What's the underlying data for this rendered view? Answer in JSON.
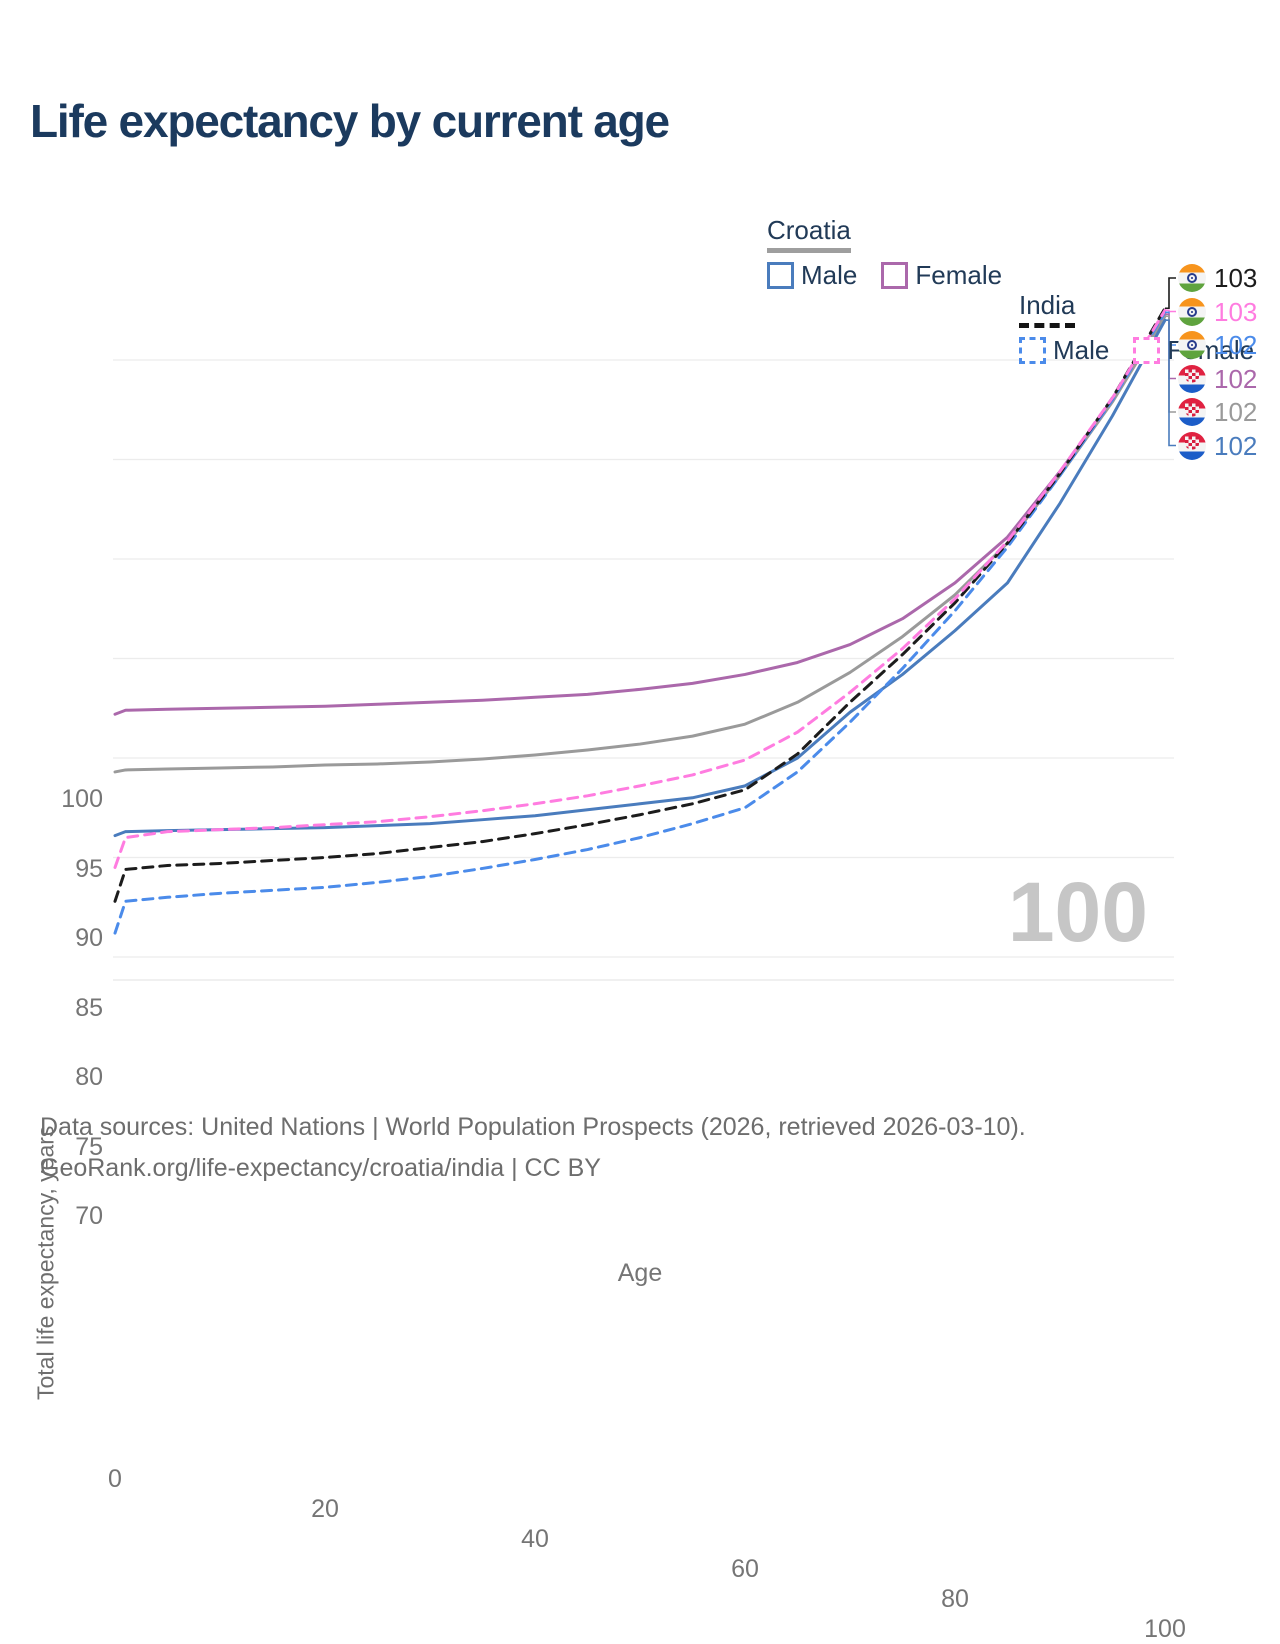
{
  "title": "Life expectancy by current age",
  "watermark": "100",
  "legend": {
    "groups": [
      {
        "label": "Croatia",
        "rule_color": "#9e9e9e",
        "rule_style": "solid",
        "items": [
          {
            "label": "Male",
            "series": "croatia_male"
          },
          {
            "label": "Female",
            "series": "croatia_female"
          }
        ]
      },
      {
        "label": "India",
        "rule_color": "#141414",
        "rule_style": "dashed",
        "items": [
          {
            "label": "Male",
            "series": "india_male"
          },
          {
            "label": "Female",
            "series": "india_female"
          }
        ]
      }
    ]
  },
  "footer": {
    "line1": "Data sources: United Nations | World Population Prospects (2026, retrieved 2026-03-10).",
    "line2": "GeoRank.org/life-expectancy/croatia/india | CC BY"
  },
  "chart_data": {
    "type": "line",
    "title": "Life expectancy by current age",
    "xlabel": "Age",
    "ylabel": "Total life expectancy, years",
    "xlim": [
      0,
      100
    ],
    "ylim": [
      69.5,
      103.5
    ],
    "x_ticks": [
      0,
      20,
      40,
      60,
      80,
      100
    ],
    "y_ticks": [
      70,
      75,
      80,
      85,
      90,
      95,
      100
    ],
    "grid": "horizontal-only",
    "legend_position": "top-right",
    "x": [
      0,
      1,
      5,
      10,
      15,
      20,
      25,
      30,
      35,
      40,
      45,
      50,
      55,
      60,
      65,
      70,
      75,
      80,
      85,
      90,
      95,
      100
    ],
    "series": [
      {
        "id": "croatia_female",
        "name": "Croatia — Female",
        "country": "Croatia",
        "sex": "Female",
        "color": "#ab68ab",
        "style": "solid",
        "end_label": "102",
        "label_row": 3,
        "flag": "croatia",
        "values": [
          82.2,
          82.4,
          82.45,
          82.5,
          82.55,
          82.6,
          82.7,
          82.8,
          82.9,
          83.05,
          83.2,
          83.45,
          83.75,
          84.2,
          84.8,
          85.7,
          87.0,
          88.8,
          91.1,
          94.4,
          98.0,
          102.3
        ]
      },
      {
        "id": "croatia_total",
        "name": "Croatia — Both sexes",
        "country": "Croatia",
        "sex": "All",
        "color": "#9a9a9a",
        "style": "solid",
        "end_label": "102",
        "label_row": 4,
        "flag": "croatia",
        "values": [
          79.3,
          79.4,
          79.45,
          79.5,
          79.55,
          79.65,
          79.7,
          79.8,
          79.95,
          80.15,
          80.4,
          80.7,
          81.1,
          81.7,
          82.8,
          84.3,
          86.1,
          88.2,
          90.8,
          94.2,
          97.9,
          102.2
        ]
      },
      {
        "id": "croatia_male",
        "name": "Croatia — Male",
        "country": "Croatia",
        "sex": "Male",
        "color": "#4a7cbd",
        "style": "solid",
        "end_label": "102",
        "label_row": 5,
        "flag": "croatia",
        "values": [
          76.1,
          76.3,
          76.35,
          76.4,
          76.45,
          76.5,
          76.6,
          76.7,
          76.9,
          77.1,
          77.4,
          77.7,
          78.0,
          78.6,
          80.0,
          82.3,
          84.2,
          86.4,
          88.8,
          92.8,
          97.2,
          102.0
        ]
      },
      {
        "id": "india_male",
        "name": "India — Male",
        "country": "India",
        "sex": "Male",
        "color": "#4b8bea",
        "style": "dashed",
        "end_label": "102",
        "label_row": 2,
        "flag": "india",
        "values": [
          71.2,
          72.8,
          73.0,
          73.2,
          73.35,
          73.5,
          73.75,
          74.05,
          74.45,
          74.9,
          75.4,
          76.0,
          76.7,
          77.5,
          79.3,
          81.8,
          84.5,
          87.4,
          90.6,
          94.2,
          98.0,
          102.4
        ]
      },
      {
        "id": "india_total",
        "name": "India — Both sexes",
        "country": "India",
        "sex": "All",
        "color": "#1c1c1c",
        "style": "dashed",
        "end_label": "103",
        "label_row": 0,
        "flag": "india",
        "values": [
          72.8,
          74.4,
          74.6,
          74.7,
          74.85,
          75.0,
          75.2,
          75.5,
          75.8,
          76.2,
          76.65,
          77.15,
          77.7,
          78.4,
          80.2,
          82.8,
          85.2,
          87.8,
          90.8,
          94.3,
          98.1,
          102.6
        ]
      },
      {
        "id": "india_female",
        "name": "India — Female",
        "country": "India",
        "sex": "Female",
        "color": "#ff7ce0",
        "style": "dashed",
        "end_label": "103",
        "label_row": 1,
        "flag": "india",
        "values": [
          74.5,
          76.0,
          76.3,
          76.4,
          76.5,
          76.65,
          76.8,
          77.05,
          77.35,
          77.7,
          78.1,
          78.6,
          79.15,
          79.9,
          81.3,
          83.3,
          85.5,
          88.0,
          90.9,
          94.4,
          98.1,
          102.5
        ]
      }
    ]
  }
}
